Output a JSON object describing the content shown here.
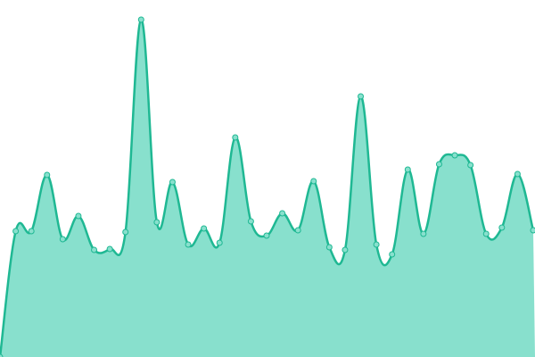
{
  "chart_data": {
    "type": "area",
    "values": [
      0,
      141,
      141,
      204,
      132,
      158,
      120,
      121,
      140,
      378,
      151,
      196,
      126,
      144,
      128,
      246,
      152,
      136,
      161,
      142,
      197,
      123,
      120,
      292,
      126,
      115,
      210,
      138,
      216,
      226,
      215,
      138,
      145,
      205,
      142
    ],
    "ylim": [
      0,
      400
    ],
    "color": "#1fb893",
    "fill": "#88e0cd",
    "markers": true
  }
}
